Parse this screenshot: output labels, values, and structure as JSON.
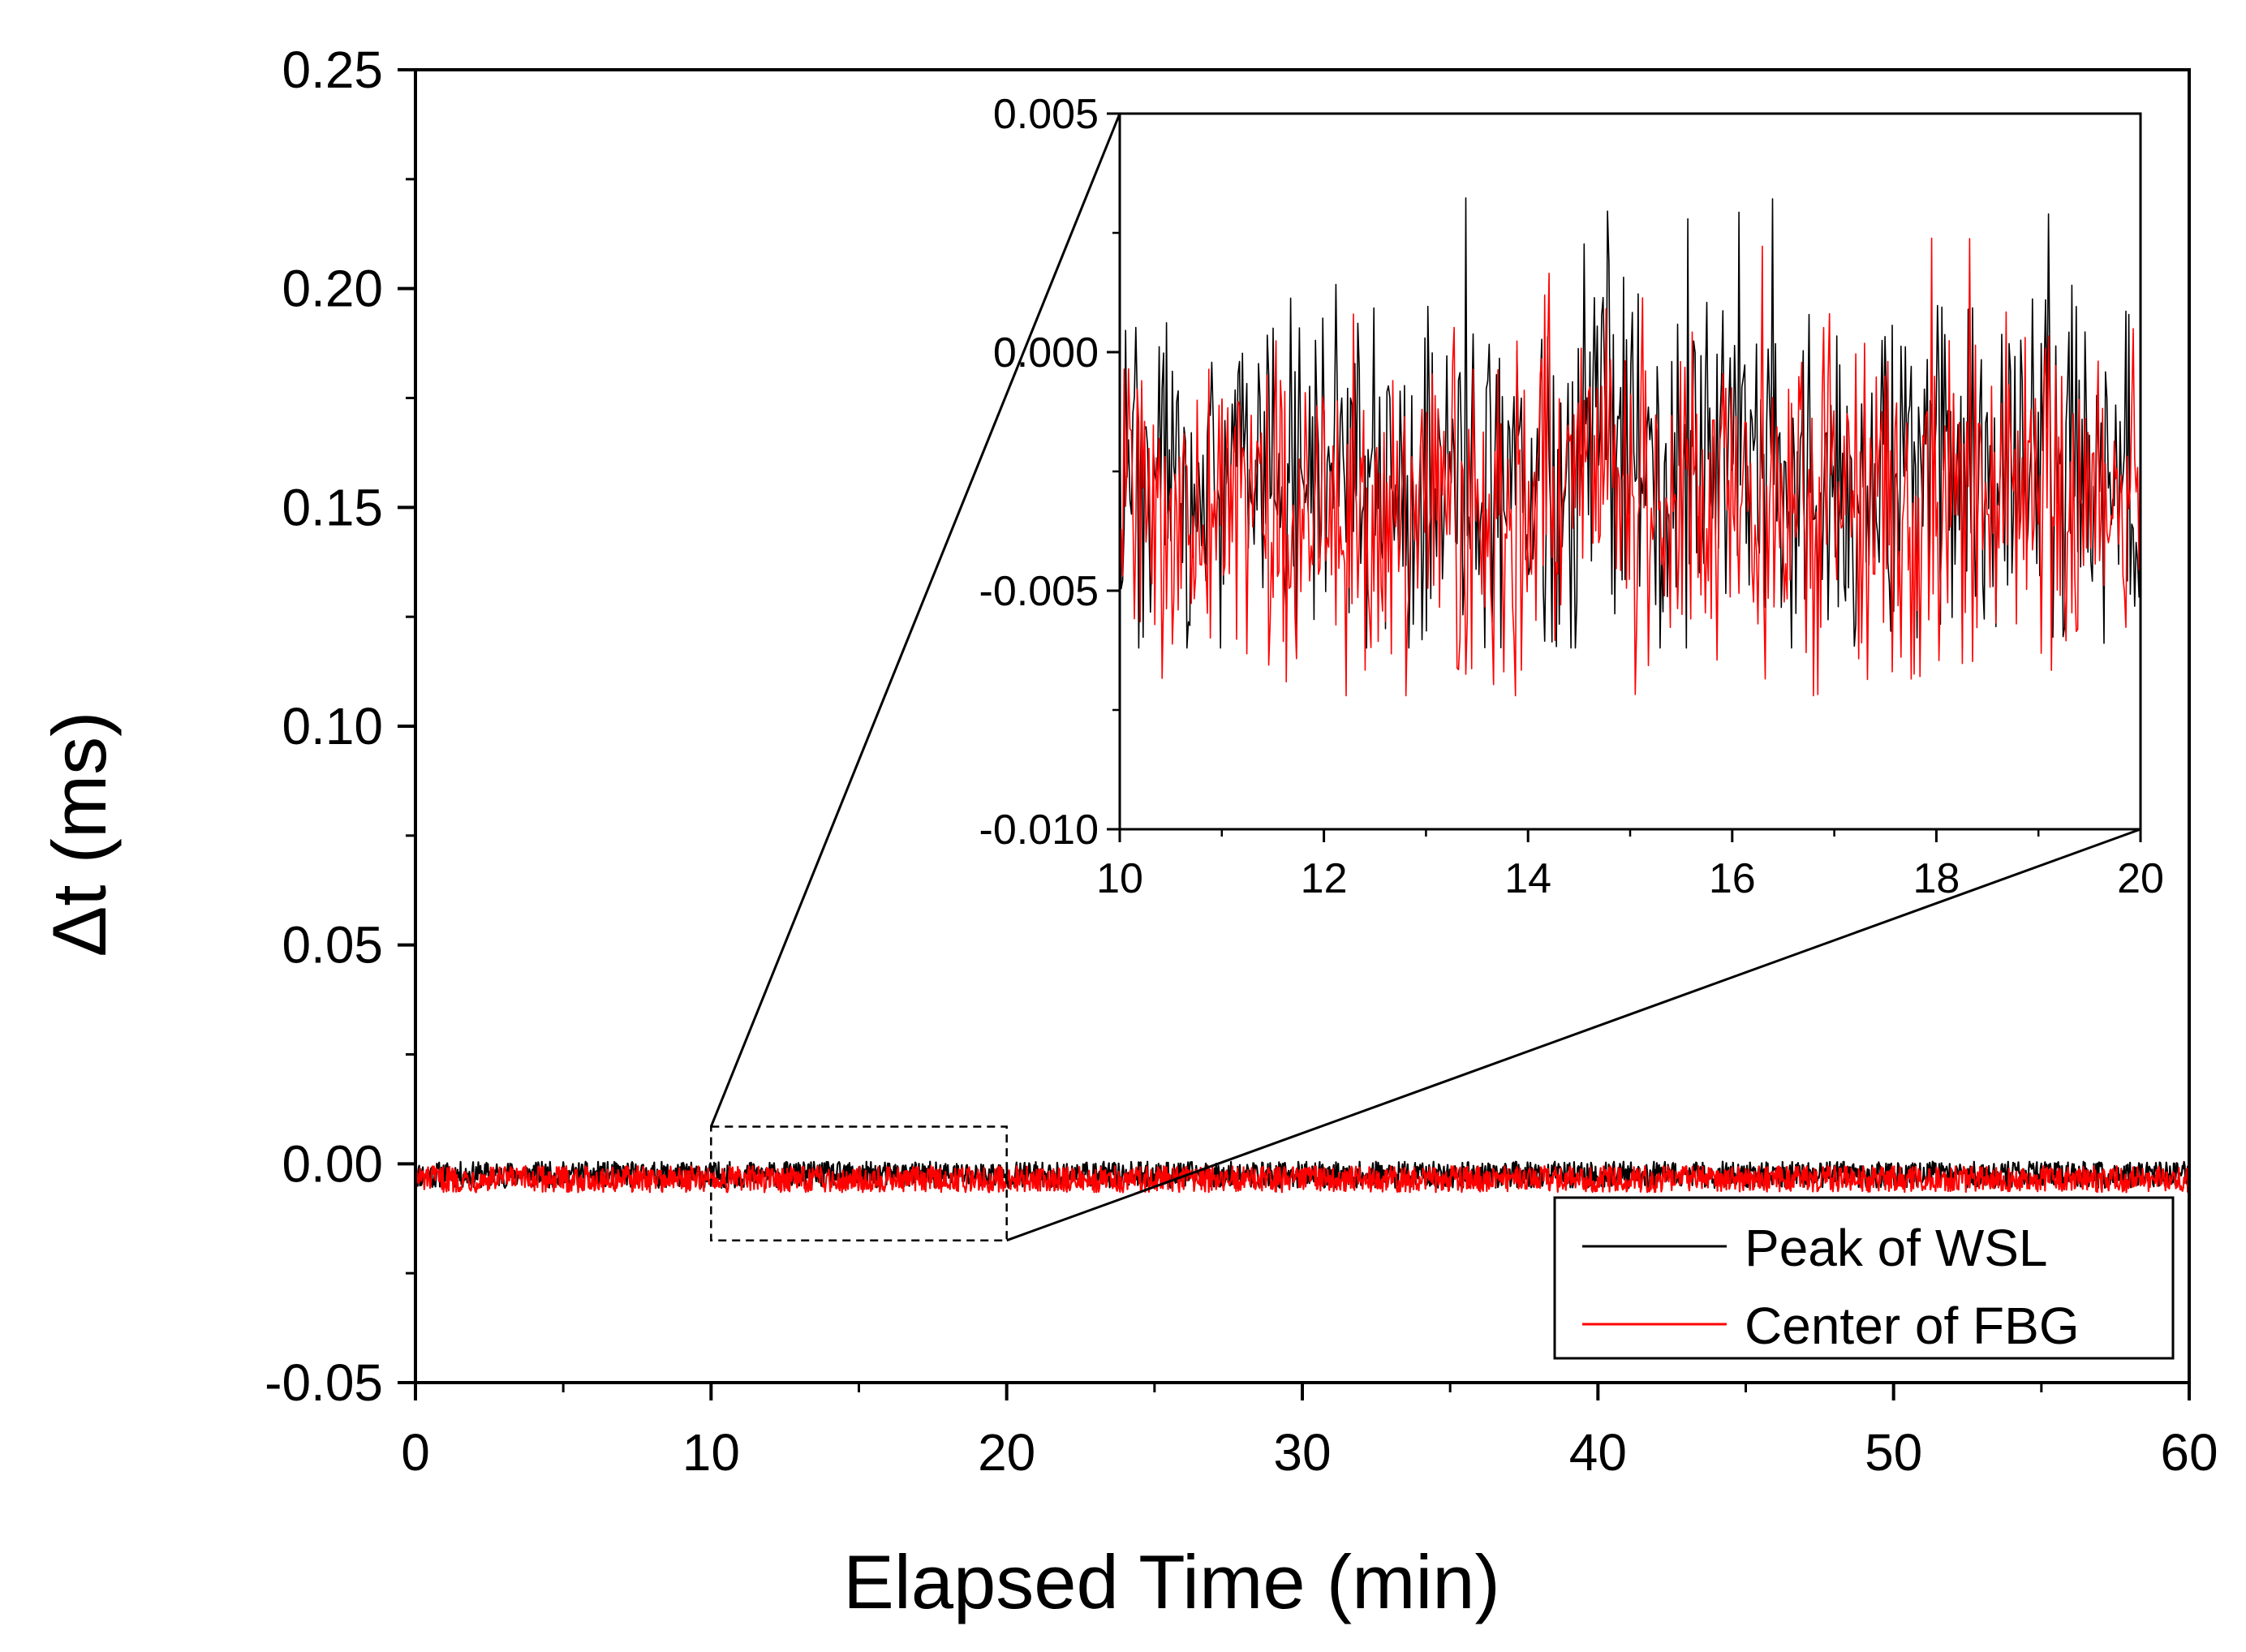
{
  "chart_data": [
    {
      "type": "line",
      "xlabel": "Elapsed Time (min)",
      "ylabel": "Δt (ms)",
      "xlim": [
        0,
        60
      ],
      "ylim": [
        -0.05,
        0.25
      ],
      "xticks": [
        "0",
        "10",
        "20",
        "30",
        "40",
        "50",
        "60"
      ],
      "yticks": [
        "-0.05",
        "0.00",
        "0.05",
        "0.10",
        "0.15",
        "0.20",
        "0.25"
      ],
      "grid": false,
      "legend_position": "bottom-right",
      "series": [
        {
          "name": "Peak of WSL",
          "color": "#000000",
          "mean": -0.0025,
          "amplitude": 0.003,
          "x": [
            0,
            60
          ]
        },
        {
          "name": "Center of FBG",
          "color": "#ff0000",
          "mean": -0.0035,
          "amplitude": 0.003,
          "x": [
            0,
            60
          ]
        }
      ],
      "annotations": [
        {
          "type": "zoom-box",
          "x_range": [
            10,
            20
          ],
          "y_range": [
            -0.0175,
            0.0085
          ]
        }
      ]
    },
    {
      "type": "line",
      "role": "inset",
      "xlim": [
        10,
        20
      ],
      "ylim": [
        -0.01,
        0.005
      ],
      "xticks": [
        "10",
        "12",
        "14",
        "16",
        "18",
        "20"
      ],
      "yticks": [
        "-0.010",
        "-0.005",
        "0.000",
        "0.005"
      ],
      "grid": false,
      "series": [
        {
          "name": "Peak of WSL",
          "color": "#000000",
          "mean": -0.0025,
          "range": [
            -0.0062,
            0.0034
          ],
          "x": [
            10,
            20
          ]
        },
        {
          "name": "Center of FBG",
          "color": "#ff0000",
          "mean": -0.0032,
          "range": [
            -0.0072,
            0.0024
          ],
          "x": [
            10,
            20
          ]
        }
      ]
    }
  ]
}
